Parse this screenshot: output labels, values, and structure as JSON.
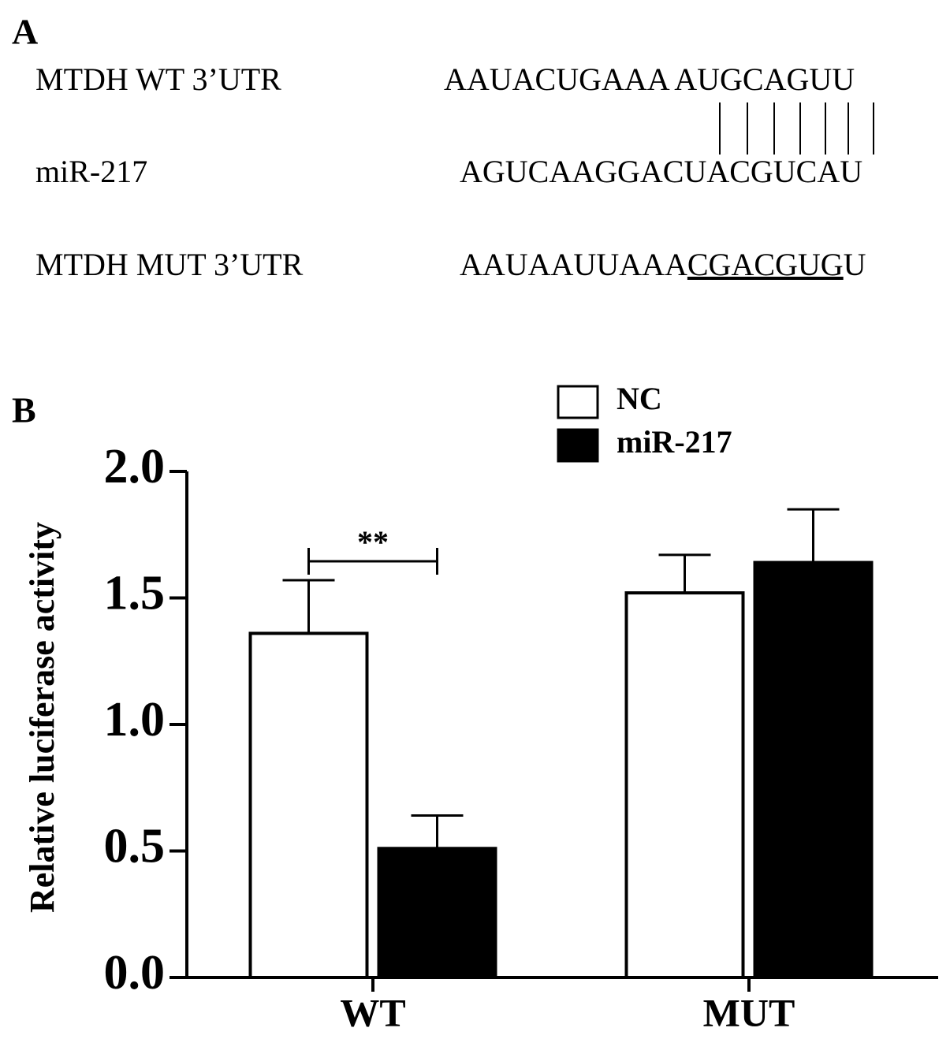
{
  "panel_a": {
    "label": "A",
    "rows": [
      {
        "name": "MTDH WT 3’UTR",
        "sequence": "AAUACUGAAA AUGCAGUU"
      },
      {
        "name": "miR-217",
        "sequence": "AGUCAAGGACUACGUCAU"
      },
      {
        "name": "MTDH MUT 3’UTR",
        "prefix": "AAUAAUUAAA",
        "mutated": "CGACGUG",
        "suffix": "U"
      }
    ]
  },
  "panel_b": {
    "label": "B"
  },
  "chart_data": {
    "type": "bar",
    "ylabel": "Relative luciferase activity",
    "categories": [
      "WT",
      "MUT"
    ],
    "series": [
      {
        "name": "NC",
        "color": "#ffffff",
        "values": [
          1.36,
          1.52
        ],
        "errors": [
          0.21,
          0.15
        ]
      },
      {
        "name": "miR-217",
        "color": "#000000",
        "values": [
          0.51,
          1.64
        ],
        "errors": [
          0.13,
          0.21
        ]
      }
    ],
    "ylim": [
      0,
      2
    ],
    "yticks": [
      {
        "value": 0,
        "label": "0.0"
      },
      0.5,
      {
        "value": 1,
        "label": "1.0"
      },
      1.5,
      {
        "value": 2,
        "label": "2.0"
      }
    ],
    "annotations": [
      {
        "text": "**",
        "category": 0
      }
    ]
  }
}
